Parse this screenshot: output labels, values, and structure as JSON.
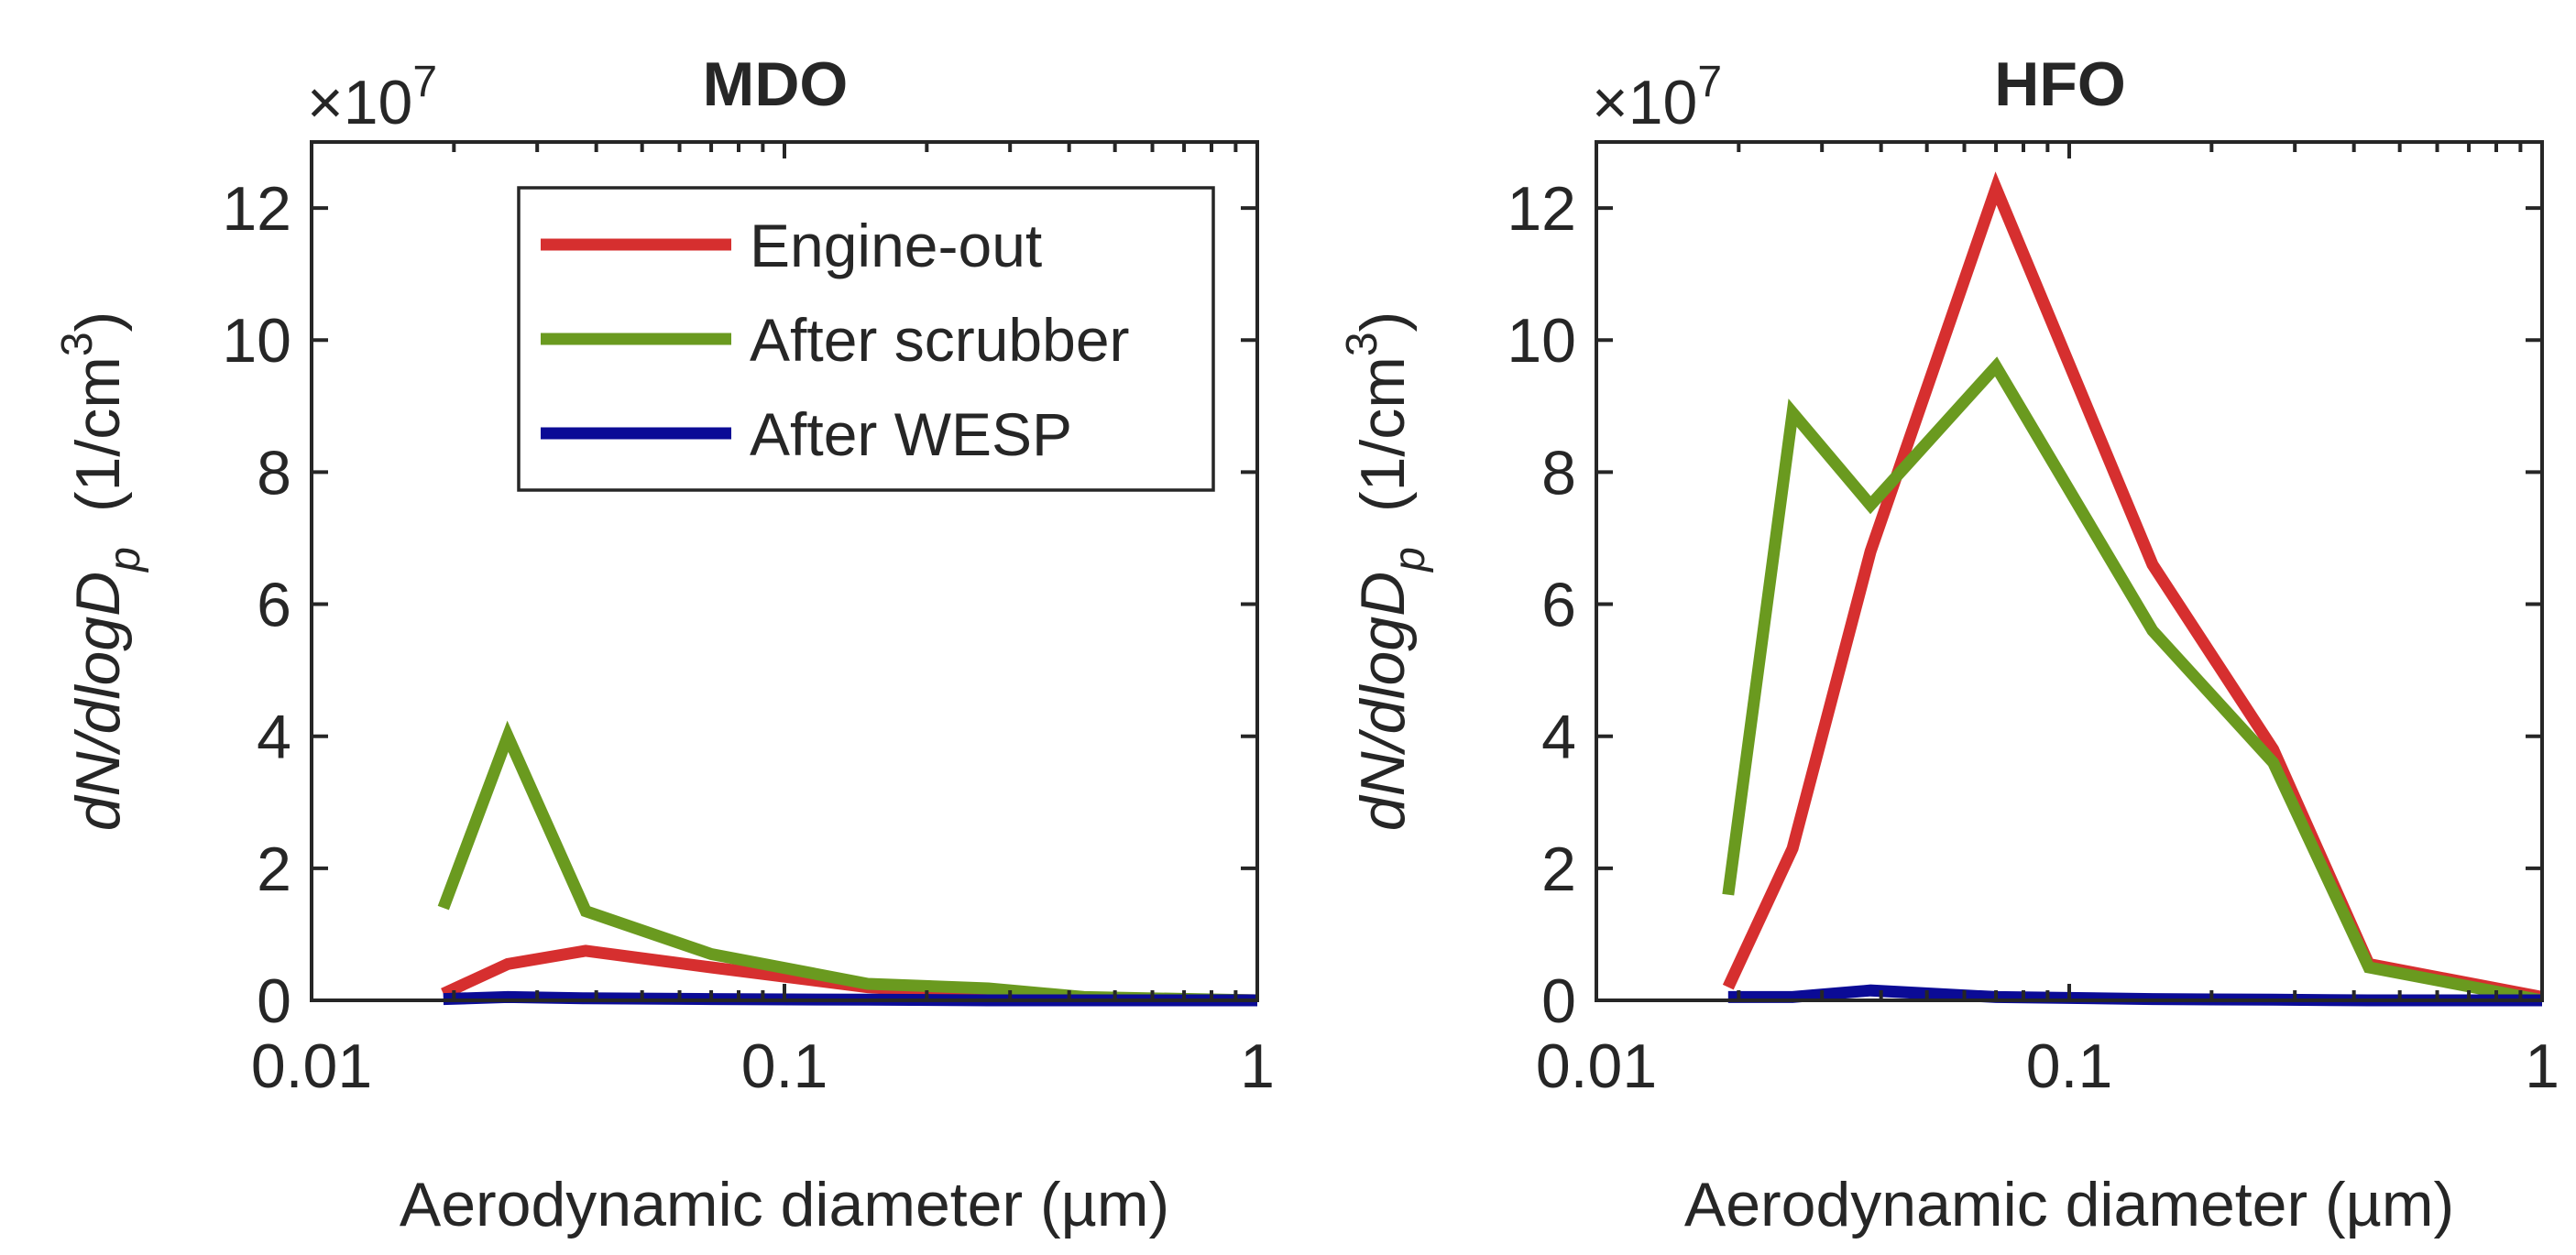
{
  "chart_data": [
    {
      "type": "line",
      "title": "MDO",
      "xlabel": "Aerodynamic diameter (µm)",
      "ylabel": {
        "main": "dN/dlogD",
        "subscript": "p",
        "unit_prefix": "(1/cm",
        "unit_superscript": "3",
        "unit_suffix": ")"
      },
      "exponent_label": {
        "prefix": "×10",
        "power": "7"
      },
      "xscale": "log",
      "xlim": [
        0.01,
        1
      ],
      "ylim": [
        0,
        13
      ],
      "x_ticks": [
        0.01,
        0.1,
        1
      ],
      "x_tick_labels": [
        "0.01",
        "0.1",
        "1"
      ],
      "y_ticks": [
        0,
        2,
        4,
        6,
        8,
        10,
        12
      ],
      "y_tick_labels": [
        "0",
        "2",
        "4",
        "6",
        "8",
        "10",
        "12"
      ],
      "legend": {
        "location": "top-right",
        "entries": [
          "Engine-out",
          "After scrubber",
          "After WESP"
        ]
      },
      "series": [
        {
          "name": "Engine-out",
          "color": "#d62f2f",
          "x": [
            0.019,
            0.026,
            0.038,
            0.07,
            0.15,
            0.27,
            0.43,
            1.0
          ],
          "y": [
            0.1,
            0.55,
            0.75,
            0.5,
            0.2,
            0.08,
            0.03,
            0.0
          ]
        },
        {
          "name": "After scrubber",
          "color": "#6a9a1f",
          "x": [
            0.019,
            0.026,
            0.038,
            0.07,
            0.15,
            0.27,
            0.43,
            1.0
          ],
          "y": [
            1.4,
            4.0,
            1.35,
            0.7,
            0.25,
            0.18,
            0.05,
            0.0
          ]
        },
        {
          "name": "After WESP",
          "color": "#0b0b96",
          "x": [
            0.019,
            0.026,
            0.038,
            0.07,
            0.15,
            0.27,
            0.43,
            1.0
          ],
          "y": [
            0.02,
            0.05,
            0.03,
            0.02,
            0.01,
            0.0,
            0.0,
            0.0
          ]
        }
      ]
    },
    {
      "type": "line",
      "title": "HFO",
      "xlabel": "Aerodynamic diameter (µm)",
      "ylabel": {
        "main": "dN/dlogD",
        "subscript": "p",
        "unit_prefix": "(1/cm",
        "unit_superscript": "3",
        "unit_suffix": ")"
      },
      "exponent_label": {
        "prefix": "×10",
        "power": "7"
      },
      "xscale": "log",
      "xlim": [
        0.01,
        1
      ],
      "ylim": [
        0,
        13
      ],
      "x_ticks": [
        0.01,
        0.1,
        1
      ],
      "x_tick_labels": [
        "0.01",
        "0.1",
        "1"
      ],
      "y_ticks": [
        0,
        2,
        4,
        6,
        8,
        10,
        12
      ],
      "y_tick_labels": [
        "0",
        "2",
        "4",
        "6",
        "8",
        "10",
        "12"
      ],
      "legend": null,
      "series": [
        {
          "name": "Engine-out",
          "color": "#d62f2f",
          "x": [
            0.019,
            0.026,
            0.038,
            0.07,
            0.15,
            0.27,
            0.43,
            1.0
          ],
          "y": [
            0.2,
            2.3,
            6.8,
            12.3,
            6.6,
            3.8,
            0.55,
            0.05
          ]
        },
        {
          "name": "After scrubber",
          "color": "#6a9a1f",
          "x": [
            0.019,
            0.026,
            0.038,
            0.07,
            0.15,
            0.27,
            0.43,
            1.0
          ],
          "y": [
            1.6,
            8.9,
            7.5,
            9.6,
            5.6,
            3.6,
            0.5,
            0.0
          ]
        },
        {
          "name": "After WESP",
          "color": "#0b0b96",
          "x": [
            0.019,
            0.026,
            0.038,
            0.07,
            0.15,
            0.27,
            0.43,
            1.0
          ],
          "y": [
            0.05,
            0.05,
            0.15,
            0.05,
            0.02,
            0.01,
            0.0,
            0.0
          ]
        }
      ]
    }
  ]
}
